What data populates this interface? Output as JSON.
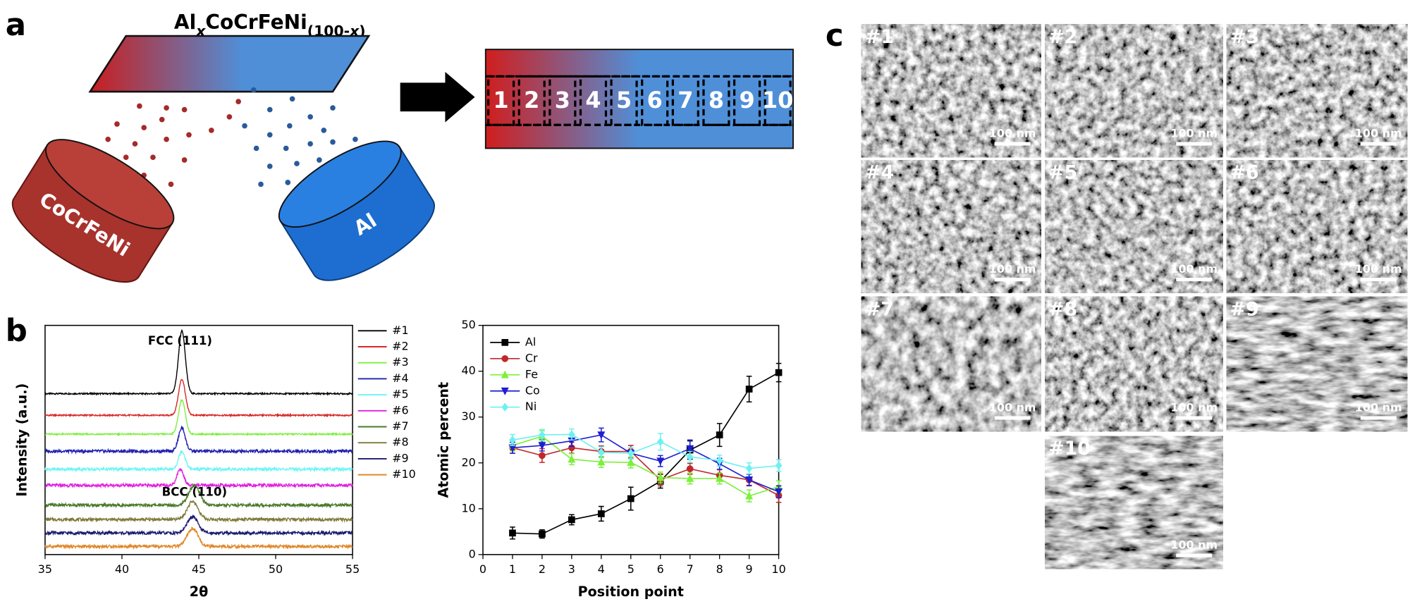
{
  "panel_labels": [
    "a",
    "b",
    "c"
  ],
  "panel_a": {
    "title_parts": [
      "Al",
      "x",
      "CoCrFeNi",
      "(100-",
      "x",
      ")"
    ],
    "targets": [
      "CoCrFeNi",
      "Al"
    ],
    "strip_labels": [
      "1",
      "2",
      "3",
      "4",
      "5",
      "6",
      "7",
      "8",
      "9",
      "10"
    ]
  },
  "chart_data": [
    {
      "type": "xrd",
      "xlabel": "2θ",
      "ylabel": "Intensity (a.u.)",
      "xlim": [
        35,
        55
      ],
      "xticks": [
        35,
        40,
        45,
        50,
        55
      ],
      "annotations": [
        {
          "text": "FCC (111)",
          "x": 43.9
        },
        {
          "text": "BCC (110)",
          "x": 44.6
        }
      ],
      "series": [
        {
          "name": "#1",
          "color": "#000000",
          "peak": 43.9
        },
        {
          "name": "#2",
          "color": "#d62728",
          "peak": 43.9
        },
        {
          "name": "#3",
          "color": "#7cf03c",
          "peak": 43.9
        },
        {
          "name": "#4",
          "color": "#2020b0",
          "peak": 43.9
        },
        {
          "name": "#5",
          "color": "#6ff5f5",
          "peak": 43.9
        },
        {
          "name": "#6",
          "color": "#e020e0",
          "peak": 43.8
        },
        {
          "name": "#7",
          "color": "#4a7a2a",
          "peak": 44.7
        },
        {
          "name": "#8",
          "color": "#7f7a3a",
          "peak": 44.6
        },
        {
          "name": "#9",
          "color": "#1a1a70",
          "peak": 44.6
        },
        {
          "name": "#10",
          "color": "#e0882a",
          "peak": 44.6
        }
      ]
    },
    {
      "type": "line",
      "xlabel": "Position point",
      "ylabel": "Atomic percent",
      "xlim": [
        0,
        10
      ],
      "xticks": [
        0,
        1,
        2,
        3,
        4,
        5,
        6,
        7,
        8,
        9,
        10
      ],
      "ylim": [
        0,
        50
      ],
      "yticks": [
        0,
        10,
        20,
        30,
        40,
        50
      ],
      "legend": "upper left",
      "x": [
        1,
        2,
        3,
        4,
        5,
        6,
        7,
        8,
        9,
        10
      ],
      "series": [
        {
          "name": "Al",
          "color": "#000000",
          "marker": "square",
          "values": [
            4.7,
            4.5,
            7.6,
            8.9,
            12.2,
            16.0,
            22.8,
            26.1,
            36.1,
            39.7
          ],
          "errors": [
            1.3,
            0.9,
            1.1,
            1.6,
            2.5,
            1.5,
            2.0,
            2.5,
            2.8,
            2.0
          ]
        },
        {
          "name": "Cr",
          "color": "#c0282a",
          "marker": "circle",
          "values": [
            23.3,
            21.6,
            23.3,
            22.5,
            22.5,
            16.3,
            18.7,
            17.3,
            16.3,
            12.9
          ],
          "errors": [
            1.2,
            1.5,
            1.2,
            1.2,
            1.3,
            1.3,
            1.2,
            1.2,
            1.3,
            1.5
          ]
        },
        {
          "name": "Fe",
          "color": "#7cf03c",
          "marker": "triangle-up",
          "values": [
            23.8,
            25.8,
            20.8,
            20.2,
            20.1,
            16.8,
            16.6,
            16.6,
            12.8,
            14.8
          ],
          "errors": [
            1.2,
            1.2,
            1.2,
            1.2,
            1.2,
            1.2,
            1.2,
            1.2,
            1.3,
            1.3
          ]
        },
        {
          "name": "Co",
          "color": "#1e1ed2",
          "marker": "triangle-down",
          "values": [
            23.3,
            23.8,
            24.8,
            26.1,
            22.1,
            20.4,
            23.1,
            19.8,
            16.3,
            13.7
          ],
          "errors": [
            1.2,
            1.2,
            1.2,
            1.5,
            1.2,
            1.2,
            1.9,
            1.2,
            1.2,
            1.3
          ]
        },
        {
          "name": "Ni",
          "color": "#6ff0f0",
          "marker": "diamond",
          "values": [
            25.0,
            26.1,
            26.2,
            22.3,
            22.1,
            24.6,
            21.3,
            20.5,
            18.8,
            19.4
          ],
          "errors": [
            1.2,
            1.2,
            1.2,
            1.2,
            1.2,
            1.8,
            1.2,
            1.2,
            1.2,
            1.3
          ]
        }
      ]
    }
  ],
  "panel_c": {
    "tiles": [
      "#1",
      "#2",
      "#3",
      "#4",
      "#5",
      "#6",
      "#7",
      "#8",
      "#9",
      "#10"
    ],
    "scale_label": "100 nm"
  }
}
